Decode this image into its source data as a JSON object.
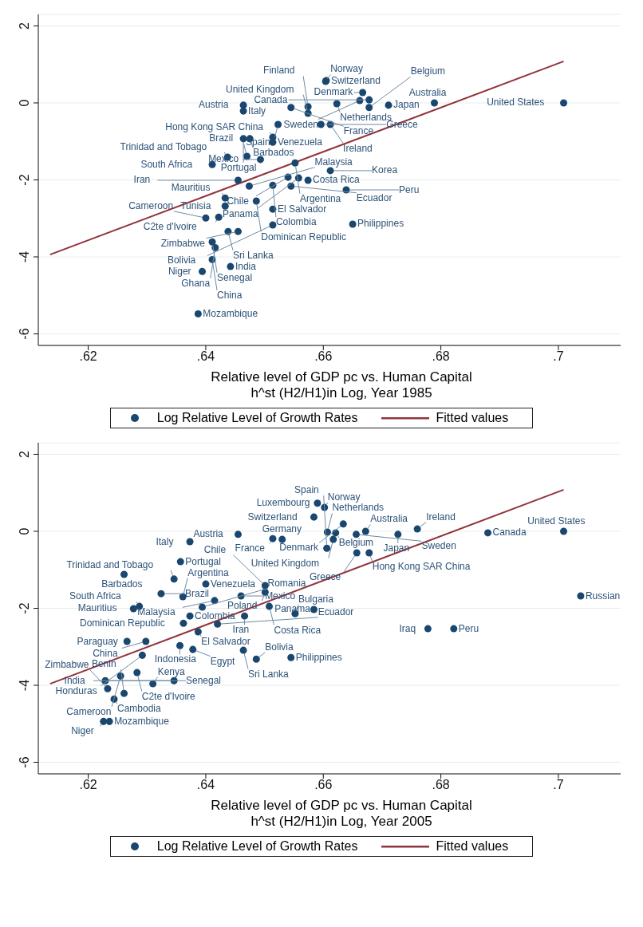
{
  "chart_data": [
    {
      "type": "scatter",
      "xlabel": "Relative level of GDP pc vs. Human Capital\nh^st (H2/H1)in Log, Year 1985",
      "xlim": [
        0.6115,
        0.7106
      ],
      "ylim": [
        -6.3,
        2.3
      ],
      "xticks": [
        {
          "value": 0.62,
          "label": ".62"
        },
        {
          "value": 0.64,
          "label": ".64"
        },
        {
          "value": 0.66,
          "label": ".66"
        },
        {
          "value": 0.68,
          "label": ".68"
        },
        {
          "value": 0.7,
          "label": ".7"
        }
      ],
      "yticks": [
        -6,
        -4,
        -2,
        0,
        2
      ],
      "grid": "y",
      "legend": "bottom",
      "series": [
        {
          "name": "Log Relative Level of Growth Rates",
          "type": "scatter",
          "marker": "circle",
          "color": "#1a476f",
          "x": [
            0.6605,
            0.6604,
            0.6667,
            0.6623,
            0.6662,
            0.6678,
            0.6678,
            0.6711,
            0.6789,
            0.7009,
            0.6464,
            0.6464,
            0.6545,
            0.6574,
            0.6574,
            0.6523,
            0.6596,
            0.6612,
            0.6464,
            0.6475,
            0.6514,
            0.6514,
            0.6437,
            0.647,
            0.6493,
            0.6552,
            0.6411,
            0.6612,
            0.6455,
            0.654,
            0.6558,
            0.6574,
            0.6474,
            0.6514,
            0.6545,
            0.6639,
            0.6433,
            0.6486,
            0.6433,
            0.6514,
            0.665,
            0.64,
            0.6422,
            0.6514,
            0.6455,
            0.6438,
            0.6411,
            0.6416,
            0.6411,
            0.6442,
            0.6394,
            0.6387
          ],
          "values": [
            0.58,
            0.56,
            0.27,
            -0.02,
            0.06,
            0.08,
            -0.12,
            -0.06,
            0,
            0,
            -0.06,
            -0.21,
            -0.12,
            -0.1,
            -0.27,
            -0.56,
            -0.56,
            -0.56,
            -0.93,
            -0.93,
            -0.89,
            -1.02,
            -1.41,
            -1.39,
            -1.47,
            -1.56,
            -1.6,
            -1.76,
            -2.01,
            -1.93,
            -1.95,
            -2.01,
            -2.16,
            -2.14,
            -2.16,
            -2.26,
            -2.47,
            -2.55,
            -2.68,
            -2.76,
            -3.15,
            -2.99,
            -2.97,
            -3.17,
            -3.34,
            -3.34,
            -3.61,
            -3.76,
            -4.07,
            -4.25,
            -4.38,
            -5.48
          ]
        },
        {
          "name": "Fitted values",
          "type": "line",
          "marker": "none",
          "color": "#90353b",
          "x": [
            0.6135,
            0.7009
          ],
          "values": [
            -3.94,
            1.08
          ]
        }
      ],
      "annotations": [
        {
          "text": "Switzerland",
          "x": 0.6605,
          "y": 0.58
        },
        {
          "text": "Norway",
          "x": 0.6604,
          "y": 0.56
        },
        {
          "text": "Denmark",
          "x": 0.6667,
          "y": 0.27
        },
        {
          "text": "Netherlands",
          "x": 0.6623,
          "y": -0.02
        },
        {
          "text": "Sweden",
          "x": 0.6662,
          "y": 0.06
        },
        {
          "text": "Canada",
          "x": 0.6678,
          "y": 0.08
        },
        {
          "text": "Belgium",
          "x": 0.6678,
          "y": -0.12
        },
        {
          "text": "Japan",
          "x": 0.6711,
          "y": -0.06
        },
        {
          "text": "Australia",
          "x": 0.6789,
          "y": 0
        },
        {
          "text": "United States",
          "x": 0.7009,
          "y": 0
        },
        {
          "text": "Austria",
          "x": 0.6464,
          "y": -0.06
        },
        {
          "text": "Italy",
          "x": 0.6464,
          "y": -0.21
        },
        {
          "text": "France",
          "x": 0.6545,
          "y": -0.12
        },
        {
          "text": "Finland",
          "x": 0.6574,
          "y": -0.1
        },
        {
          "text": "United Kingdom",
          "x": 0.6574,
          "y": -0.27
        },
        {
          "text": "Spain",
          "x": 0.6523,
          "y": -0.56
        },
        {
          "text": "Greece",
          "x": 0.6596,
          "y": -0.56
        },
        {
          "text": "Ireland",
          "x": 0.6612,
          "y": -0.56
        },
        {
          "text": "Portugal",
          "x": 0.6464,
          "y": -0.93
        },
        {
          "text": "Barbados",
          "x": 0.6475,
          "y": -0.93
        },
        {
          "text": "Hong Kong SAR China",
          "x": 0.6514,
          "y": -0.89
        },
        {
          "text": "Venezuela",
          "x": 0.6514,
          "y": -1.02
        },
        {
          "text": "Trinidad and Tobago",
          "x": 0.6437,
          "y": -1.41
        },
        {
          "text": "Brazil",
          "x": 0.647,
          "y": -1.39
        },
        {
          "text": "Mexico",
          "x": 0.6493,
          "y": -1.47
        },
        {
          "text": "Argentina",
          "x": 0.6552,
          "y": -1.56
        },
        {
          "text": "South Africa",
          "x": 0.6411,
          "y": -1.6
        },
        {
          "text": "Korea",
          "x": 0.6612,
          "y": -1.76
        },
        {
          "text": "Iran",
          "x": 0.6455,
          "y": -2.01
        },
        {
          "text": "Chile",
          "x": 0.654,
          "y": -1.93
        },
        {
          "text": "Panama",
          "x": 0.6558,
          "y": -1.95
        },
        {
          "text": "Costa Rica",
          "x": 0.6574,
          "y": -2.01
        },
        {
          "text": "Malaysia",
          "x": 0.6474,
          "y": -2.16
        },
        {
          "text": "Colombia",
          "x": 0.6514,
          "y": -2.14
        },
        {
          "text": "Ecuador",
          "x": 0.6545,
          "y": -2.16
        },
        {
          "text": "Peru",
          "x": 0.6639,
          "y": -2.26
        },
        {
          "text": "Mauritius",
          "x": 0.6433,
          "y": -2.47
        },
        {
          "text": "Dominican Republic",
          "x": 0.6486,
          "y": -2.55
        },
        {
          "text": "Tunisia",
          "x": 0.6433,
          "y": -2.68
        },
        {
          "text": "El Salvador",
          "x": 0.6514,
          "y": -2.76
        },
        {
          "text": "Philippines",
          "x": 0.665,
          "y": -3.15
        },
        {
          "text": "Cameroon",
          "x": 0.64,
          "y": -2.99
        },
        {
          "text": "C2te d'Ivoire",
          "x": 0.6422,
          "y": -2.97
        },
        {
          "text": "Bolivia",
          "x": 0.6514,
          "y": -3.17
        },
        {
          "text": "Zimbabwe",
          "x": 0.6455,
          "y": -3.34
        },
        {
          "text": "Sri Lanka",
          "x": 0.6438,
          "y": -3.34
        },
        {
          "text": "Senegal",
          "x": 0.6411,
          "y": -3.61
        },
        {
          "text": "Ghana",
          "x": 0.6416,
          "y": -3.76
        },
        {
          "text": "China",
          "x": 0.6411,
          "y": -4.07
        },
        {
          "text": "India",
          "x": 0.6442,
          "y": -4.25
        },
        {
          "text": "Niger",
          "x": 0.6394,
          "y": -4.38
        },
        {
          "text": "Mozambique",
          "x": 0.6387,
          "y": -5.48
        }
      ]
    },
    {
      "type": "scatter",
      "xlabel": "Relative level of GDP pc vs. Human Capital\nh^st (H2/H1)in Log, Year 2005",
      "xlim": [
        0.6115,
        0.7106
      ],
      "ylim": [
        -6.3,
        2.3
      ],
      "xticks": [
        {
          "value": 0.62,
          "label": ".62"
        },
        {
          "value": 0.64,
          "label": ".64"
        },
        {
          "value": 0.66,
          "label": ".66"
        },
        {
          "value": 0.68,
          "label": ".68"
        },
        {
          "value": 0.7,
          "label": ".7"
        }
      ],
      "yticks": [
        -6,
        -4,
        -2,
        0,
        2
      ],
      "grid": "y",
      "legend": "bottom",
      "series": [
        {
          "name": "Log Relative Level of Growth Rates",
          "type": "scatter",
          "marker": "circle",
          "color": "#1a476f",
          "x": [
            0.659,
            0.6602,
            0.6584,
            0.6634,
            0.6607,
            0.6621,
            0.6617,
            0.6656,
            0.6672,
            0.6727,
            0.676,
            0.688,
            0.7009,
            0.7038,
            0.6778,
            0.6822,
            0.6606,
            0.6657,
            0.6678,
            0.6514,
            0.653,
            0.6455,
            0.6373,
            0.6357,
            0.6261,
            0.6346,
            0.64,
            0.6501,
            0.6501,
            0.6324,
            0.6361,
            0.646,
            0.6415,
            0.6394,
            0.6287,
            0.6277,
            0.6508,
            0.6552,
            0.6584,
            0.6373,
            0.6466,
            0.6362,
            0.642,
            0.6387,
            0.6266,
            0.6298,
            0.6356,
            0.6378,
            0.6292,
            0.6464,
            0.6486,
            0.6545,
            0.6283,
            0.6255,
            0.6229,
            0.6233,
            0.631,
            0.6346,
            0.6261,
            0.6244,
            0.6226,
            0.6236
          ],
          "values": [
            0.73,
            0.62,
            0.37,
            0.19,
            -0.02,
            -0.04,
            -0.21,
            -0.08,
            0,
            -0.08,
            0.06,
            -0.04,
            0,
            -1.68,
            -2.53,
            -2.53,
            -0.44,
            -0.56,
            -0.56,
            -0.19,
            -0.21,
            -0.08,
            -0.27,
            -0.79,
            -1.12,
            -1.24,
            -1.37,
            -1.41,
            -1.58,
            -1.62,
            -1.7,
            -1.68,
            -1.8,
            -1.97,
            -1.95,
            -2.01,
            -1.95,
            -2.14,
            -2.03,
            -2.2,
            -2.2,
            -2.39,
            -2.41,
            -2.61,
            -2.86,
            -2.86,
            -2.97,
            -3.07,
            -3.22,
            -3.09,
            -3.32,
            -3.28,
            -3.67,
            -3.76,
            -3.88,
            -4.09,
            -3.96,
            -3.88,
            -4.21,
            -4.36,
            -4.94,
            -4.94
          ]
        },
        {
          "name": "Fitted values",
          "type": "line",
          "marker": "none",
          "color": "#90353b",
          "x": [
            0.6135,
            0.7009
          ],
          "values": [
            -3.96,
            1.08
          ]
        }
      ],
      "annotations": [
        {
          "text": "Luxembourg",
          "x": 0.659,
          "y": 0.73
        },
        {
          "text": "Norway",
          "x": 0.6602,
          "y": 0.62
        },
        {
          "text": "Switzerland",
          "x": 0.6584,
          "y": 0.37
        },
        {
          "text": "Denmark",
          "x": 0.6634,
          "y": 0.19
        },
        {
          "text": "Netherlands",
          "x": 0.6607,
          "y": -0.02
        },
        {
          "text": "Belgium",
          "x": 0.6621,
          "y": -0.04
        },
        {
          "text": "United Kingdom",
          "x": 0.6617,
          "y": -0.21
        },
        {
          "text": "Sweden",
          "x": 0.6656,
          "y": -0.08
        },
        {
          "text": "Australia",
          "x": 0.6672,
          "y": 0
        },
        {
          "text": "Japan",
          "x": 0.6727,
          "y": -0.08
        },
        {
          "text": "Ireland",
          "x": 0.676,
          "y": 0.06
        },
        {
          "text": "Canada",
          "x": 0.688,
          "y": -0.04
        },
        {
          "text": "United States",
          "x": 0.7009,
          "y": 0
        },
        {
          "text": "Russian",
          "x": 0.7038,
          "y": -1.68
        },
        {
          "text": "Iraq",
          "x": 0.6778,
          "y": -2.53
        },
        {
          "text": "Peru",
          "x": 0.6822,
          "y": -2.53
        },
        {
          "text": "Spain",
          "x": 0.6606,
          "y": -0.44
        },
        {
          "text": "Greece",
          "x": 0.6657,
          "y": -0.56
        },
        {
          "text": "Hong Kong SAR China",
          "x": 0.6678,
          "y": -0.56
        },
        {
          "text": "France",
          "x": 0.6514,
          "y": -0.19
        },
        {
          "text": "Germany",
          "x": 0.653,
          "y": -0.21
        },
        {
          "text": "Austria",
          "x": 0.6455,
          "y": -0.08
        },
        {
          "text": "Italy",
          "x": 0.6373,
          "y": -0.27
        },
        {
          "text": "Portugal",
          "x": 0.6357,
          "y": -0.79
        },
        {
          "text": "Barbados",
          "x": 0.6261,
          "y": -1.12
        },
        {
          "text": "Trinidad and Tobago",
          "x": 0.6346,
          "y": -1.24
        },
        {
          "text": "Venezuela",
          "x": 0.64,
          "y": -1.37
        },
        {
          "text": "Chile",
          "x": 0.6501,
          "y": -1.41
        },
        {
          "text": "Poland",
          "x": 0.6501,
          "y": -1.58
        },
        {
          "text": "Brazil",
          "x": 0.6324,
          "y": -1.62
        },
        {
          "text": "Argentina",
          "x": 0.6361,
          "y": -1.7
        },
        {
          "text": "Mexico",
          "x": 0.646,
          "y": -1.68
        },
        {
          "text": "Malaysia",
          "x": 0.6415,
          "y": -1.8
        },
        {
          "text": "Romania",
          "x": 0.6394,
          "y": -1.97
        },
        {
          "text": "South Africa",
          "x": 0.6287,
          "y": -1.95
        },
        {
          "text": "Mauritius",
          "x": 0.6277,
          "y": -2.01
        },
        {
          "text": "Costa Rica",
          "x": 0.6508,
          "y": -1.95
        },
        {
          "text": "Bulgaria",
          "x": 0.6552,
          "y": -2.14
        },
        {
          "text": "Panama",
          "x": 0.6584,
          "y": -2.03
        },
        {
          "text": "Colombia",
          "x": 0.6373,
          "y": -2.2
        },
        {
          "text": "Iran",
          "x": 0.6466,
          "y": -2.2
        },
        {
          "text": "Dominican Republic",
          "x": 0.6362,
          "y": -2.39
        },
        {
          "text": "Ecuador",
          "x": 0.642,
          "y": -2.41
        },
        {
          "text": "El Salvador",
          "x": 0.6387,
          "y": -2.61
        },
        {
          "text": "Paraguay",
          "x": 0.6266,
          "y": -2.86
        },
        {
          "text": "China",
          "x": 0.6298,
          "y": -2.86
        },
        {
          "text": "Indonesia",
          "x": 0.6356,
          "y": -2.97
        },
        {
          "text": "Egypt",
          "x": 0.6378,
          "y": -3.07
        },
        {
          "text": "Honduras",
          "x": 0.6292,
          "y": -3.22
        },
        {
          "text": "Sri Lanka",
          "x": 0.6464,
          "y": -3.09
        },
        {
          "text": "Bolivia",
          "x": 0.6486,
          "y": -3.32
        },
        {
          "text": "Philippines",
          "x": 0.6545,
          "y": -3.28
        },
        {
          "text": "C2te d'Ivoire",
          "x": 0.6283,
          "y": -3.67
        },
        {
          "text": "Cameroon",
          "x": 0.6255,
          "y": -3.76
        },
        {
          "text": "Senegal",
          "x": 0.6229,
          "y": -3.88
        },
        {
          "text": "Zimbabwe",
          "x": 0.6233,
          "y": -4.09
        },
        {
          "text": "Kenya",
          "x": 0.631,
          "y": -3.96
        },
        {
          "text": "India",
          "x": 0.6346,
          "y": -3.88
        },
        {
          "text": "Benin",
          "x": 0.6261,
          "y": -4.21
        },
        {
          "text": "Cambodia",
          "x": 0.6244,
          "y": -4.36
        },
        {
          "text": "Niger",
          "x": 0.6226,
          "y": -4.94
        },
        {
          "text": "Mozambique",
          "x": 0.6236,
          "y": -4.94
        }
      ]
    }
  ]
}
